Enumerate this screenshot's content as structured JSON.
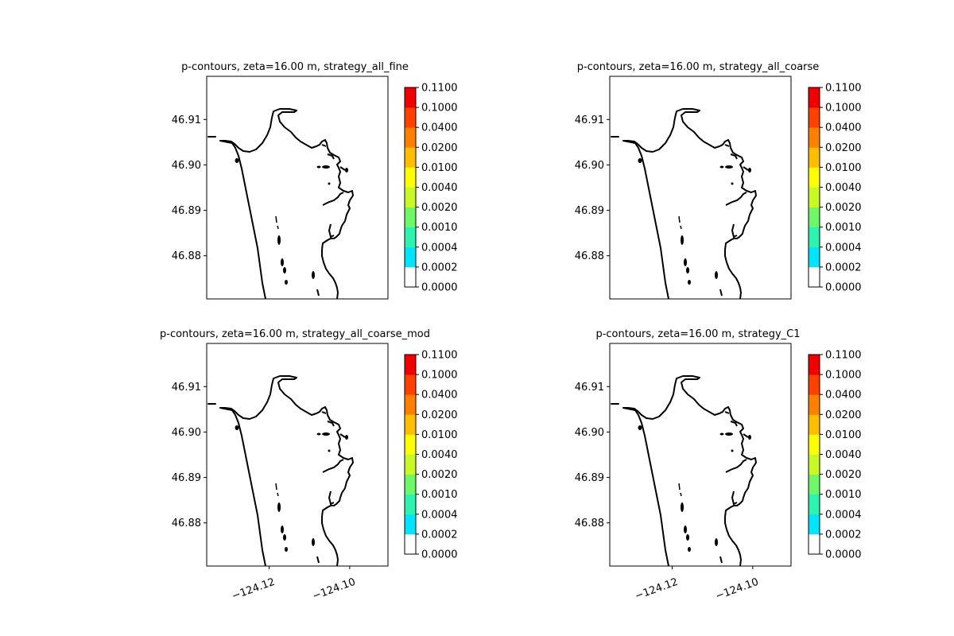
{
  "chart_data": [
    {
      "type": "contour",
      "title": "p-contours, zeta=16.00 m, strategy_all_fine",
      "ylim": [
        46.8705,
        46.9195
      ],
      "xlim": [
        -124.1355,
        -124.0905
      ],
      "y_ticks": [
        "46.88",
        "46.89",
        "46.90",
        "46.91"
      ],
      "y_tick_values": [
        46.88,
        46.89,
        46.9,
        46.91
      ],
      "x_ticks": [],
      "colorbar": {
        "levels": [
          "0.0000",
          "0.0002",
          "0.0004",
          "0.0010",
          "0.0020",
          "0.0040",
          "0.0100",
          "0.0200",
          "0.0400",
          "0.1000",
          "0.1100"
        ],
        "colors": [
          "#ffffff",
          "#00e5ff",
          "#2ef2b0",
          "#6ef766",
          "#c8f826",
          "#ffff00",
          "#ffbf00",
          "#ff8000",
          "#ff4000",
          "#f00000"
        ]
      },
      "contour_fill": "none"
    },
    {
      "type": "contour",
      "title": "p-contours, zeta=16.00 m, strategy_all_coarse",
      "ylim": [
        46.8705,
        46.9195
      ],
      "xlim": [
        -124.1355,
        -124.0905
      ],
      "y_ticks": [
        "46.88",
        "46.89",
        "46.90",
        "46.91"
      ],
      "y_tick_values": [
        46.88,
        46.89,
        46.9,
        46.91
      ],
      "x_ticks": [],
      "colorbar": {
        "levels": [
          "0.0000",
          "0.0002",
          "0.0004",
          "0.0010",
          "0.0020",
          "0.0040",
          "0.0100",
          "0.0200",
          "0.0400",
          "0.1000",
          "0.1100"
        ],
        "colors": [
          "#ffffff",
          "#00e5ff",
          "#2ef2b0",
          "#6ef766",
          "#c8f826",
          "#ffff00",
          "#ffbf00",
          "#ff8000",
          "#ff4000",
          "#f00000"
        ]
      },
      "contour_fill": "none"
    },
    {
      "type": "contour",
      "title": "p-contours, zeta=16.00 m, strategy_all_coarse_mod",
      "ylim": [
        46.8705,
        46.9195
      ],
      "xlim": [
        -124.1355,
        -124.0905
      ],
      "y_ticks": [
        "46.88",
        "46.89",
        "46.90",
        "46.91"
      ],
      "y_tick_values": [
        46.88,
        46.89,
        46.9,
        46.91
      ],
      "x_ticks": [
        "−124.12",
        "−124.10"
      ],
      "x_tick_values": [
        -124.12,
        -124.1
      ],
      "colorbar": {
        "levels": [
          "0.0000",
          "0.0002",
          "0.0004",
          "0.0010",
          "0.0020",
          "0.0040",
          "0.0100",
          "0.0200",
          "0.0400",
          "0.1000",
          "0.1100"
        ],
        "colors": [
          "#ffffff",
          "#00e5ff",
          "#2ef2b0",
          "#6ef766",
          "#c8f826",
          "#ffff00",
          "#ffbf00",
          "#ff8000",
          "#ff4000",
          "#f00000"
        ]
      },
      "contour_fill": "none"
    },
    {
      "type": "contour",
      "title": "p-contours, zeta=16.00 m, strategy_C1",
      "ylim": [
        46.8705,
        46.9195
      ],
      "xlim": [
        -124.1355,
        -124.0905
      ],
      "y_ticks": [
        "46.88",
        "46.89",
        "46.90",
        "46.91"
      ],
      "y_tick_values": [
        46.88,
        46.89,
        46.9,
        46.91
      ],
      "x_ticks": [
        "−124.12",
        "−124.10"
      ],
      "x_tick_values": [
        -124.12,
        -124.1
      ],
      "colorbar": {
        "levels": [
          "0.0000",
          "0.0002",
          "0.0004",
          "0.0010",
          "0.0020",
          "0.0040",
          "0.0100",
          "0.0200",
          "0.0400",
          "0.1000",
          "0.1100"
        ],
        "colors": [
          "#ffffff",
          "#00e5ff",
          "#2ef2b0",
          "#6ef766",
          "#c8f826",
          "#ffff00",
          "#ffbf00",
          "#ff8000",
          "#ff4000",
          "#f00000"
        ]
      },
      "contour_fill": "none"
    }
  ]
}
